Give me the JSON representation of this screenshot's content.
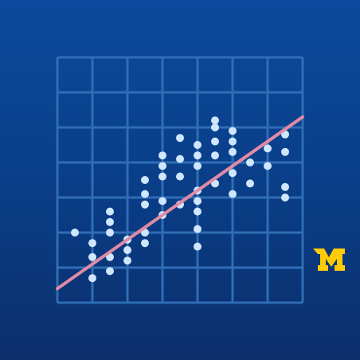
{
  "colors": {
    "background_top": "#0b4a9c",
    "background_bottom": "#0b2f6b",
    "grid": "#2f6db5",
    "points": "#cfe6ff",
    "trend_line": "#e08aa6",
    "logo": "#ffcb05"
  },
  "logo": {
    "text": "M",
    "description": "block-m-logo"
  },
  "chart_data": {
    "type": "scatter",
    "title": "",
    "xlabel": "",
    "ylabel": "",
    "grid": true,
    "xlim": [
      0,
      7
    ],
    "ylim": [
      0,
      7
    ],
    "grid_divisions": 7,
    "points": [
      [
        0.5,
        2.0
      ],
      [
        1.0,
        1.7
      ],
      [
        1.0,
        1.3
      ],
      [
        1.0,
        0.7
      ],
      [
        1.5,
        2.6
      ],
      [
        1.5,
        2.3
      ],
      [
        1.5,
        2.0
      ],
      [
        1.5,
        1.3
      ],
      [
        1.5,
        0.9
      ],
      [
        2.0,
        1.8
      ],
      [
        2.0,
        1.5
      ],
      [
        2.0,
        1.2
      ],
      [
        2.5,
        3.5
      ],
      [
        2.5,
        3.1
      ],
      [
        2.5,
        2.8
      ],
      [
        2.5,
        2.0
      ],
      [
        2.5,
        1.7
      ],
      [
        3.0,
        4.2
      ],
      [
        3.0,
        3.9
      ],
      [
        3.0,
        3.6
      ],
      [
        3.0,
        2.9
      ],
      [
        3.0,
        2.5
      ],
      [
        3.5,
        4.7
      ],
      [
        3.5,
        4.1
      ],
      [
        3.5,
        3.6
      ],
      [
        3.5,
        2.8
      ],
      [
        4.0,
        4.5
      ],
      [
        4.0,
        4.2
      ],
      [
        4.0,
        3.9
      ],
      [
        4.0,
        3.2
      ],
      [
        4.0,
        2.9
      ],
      [
        4.0,
        2.6
      ],
      [
        4.0,
        2.1
      ],
      [
        4.0,
        1.6
      ],
      [
        4.5,
        5.2
      ],
      [
        4.5,
        5.0
      ],
      [
        4.5,
        4.6
      ],
      [
        4.5,
        4.2
      ],
      [
        4.5,
        3.4
      ],
      [
        5.0,
        4.9
      ],
      [
        5.0,
        4.6
      ],
      [
        5.0,
        4.3
      ],
      [
        5.0,
        3.7
      ],
      [
        5.0,
        3.1
      ],
      [
        5.5,
        4.0
      ],
      [
        5.5,
        3.4
      ],
      [
        6.0,
        4.4
      ],
      [
        6.0,
        3.9
      ],
      [
        6.5,
        4.8
      ],
      [
        6.5,
        4.3
      ],
      [
        6.5,
        3.3
      ],
      [
        6.5,
        3.0
      ]
    ],
    "trend_line": {
      "x": [
        0.0,
        7.0
      ],
      "y": [
        0.4,
        5.3
      ]
    }
  }
}
